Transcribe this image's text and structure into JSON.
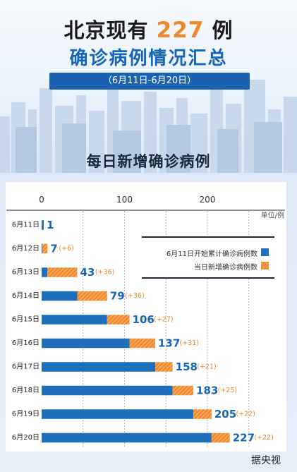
{
  "header": {
    "title_prefix": "北京现有",
    "title_number": "227",
    "title_suffix": "例",
    "subtitle": "确诊病例情况汇总",
    "date_range": "（6月11日-6月20日）"
  },
  "section_title": "每日新增确诊病例",
  "unit_label": "单位/例",
  "source": "据央视",
  "colors": {
    "previous": "#1f6fbd",
    "new": "#f0882a",
    "title_accent": "#f0882a",
    "title_blue": "#1565b9",
    "total_label": "#1565b9",
    "increment_label": "#f0882a"
  },
  "legend": [
    {
      "label": "6月11日开始累计确诊病例数",
      "series": "previous"
    },
    {
      "label": "当日新增确诊病例数",
      "series": "new"
    }
  ],
  "chart_data": {
    "type": "bar",
    "orientation": "horizontal",
    "stacked": true,
    "categories": [
      "6月11日",
      "6月12日",
      "6月13日",
      "6月14日",
      "6月15日",
      "6月16日",
      "6月17日",
      "6月18日",
      "6月19日",
      "6月20日"
    ],
    "series": [
      {
        "name": "6月11日开始累计确诊病例数",
        "values": [
          1,
          1,
          7,
          43,
          79,
          106,
          137,
          158,
          183,
          205
        ]
      },
      {
        "name": "当日新增确诊病例数",
        "values": [
          0,
          6,
          36,
          36,
          27,
          31,
          21,
          25,
          22,
          22
        ]
      }
    ],
    "totals": [
      "1",
      "7",
      "43",
      "79",
      "106",
      "137",
      "158",
      "183",
      "205",
      "227"
    ],
    "increments": [
      "",
      "(+6)",
      "(+36)",
      "(+36)",
      "(+27)",
      "(+31)",
      "(+21)",
      "(+25)",
      "(+22)",
      "(+22)"
    ],
    "x_ticks": [
      0,
      100,
      200
    ],
    "xlim": [
      0,
      250
    ],
    "grid": true
  }
}
